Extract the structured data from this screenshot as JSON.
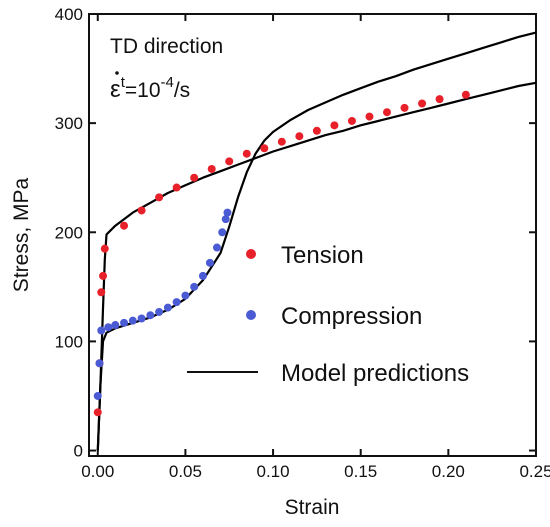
{
  "chart_data": {
    "type": "scatter",
    "xlabel": "Strain",
    "ylabel": "Stress, MPa",
    "xlim": [
      -0.005,
      0.25
    ],
    "ylim": [
      -5,
      400
    ],
    "xticks": [
      0.0,
      0.05,
      0.1,
      0.15,
      0.2,
      0.25
    ],
    "xtick_labels": [
      "0.00",
      "0.05",
      "0.10",
      "0.15",
      "0.20",
      "0.25"
    ],
    "yticks": [
      0,
      100,
      200,
      300,
      400
    ],
    "ytick_labels": [
      "0",
      "100",
      "200",
      "300",
      "400"
    ],
    "grid": false,
    "legend_position": "right-middle",
    "annotation": {
      "line1": "TD direction",
      "rate_symbol": "ε",
      "rate_superscript": "t",
      "rate_equals": "=10",
      "rate_exponent": "-4",
      "rate_unit": "/s"
    },
    "series": [
      {
        "name": "Tension",
        "kind": "points",
        "color": "#e8202a",
        "points": [
          [
            0.0,
            35
          ],
          [
            0.001,
            80
          ],
          [
            0.002,
            145
          ],
          [
            0.003,
            160
          ],
          [
            0.004,
            185
          ],
          [
            0.015,
            206
          ],
          [
            0.025,
            220
          ],
          [
            0.035,
            232
          ],
          [
            0.045,
            241
          ],
          [
            0.055,
            250
          ],
          [
            0.065,
            258
          ],
          [
            0.075,
            265
          ],
          [
            0.085,
            272
          ],
          [
            0.095,
            277
          ],
          [
            0.105,
            283
          ],
          [
            0.115,
            288
          ],
          [
            0.125,
            293
          ],
          [
            0.135,
            298
          ],
          [
            0.145,
            302
          ],
          [
            0.155,
            306
          ],
          [
            0.165,
            310
          ],
          [
            0.175,
            314
          ],
          [
            0.185,
            318
          ],
          [
            0.195,
            322
          ],
          [
            0.21,
            326
          ]
        ]
      },
      {
        "name": "Compression",
        "kind": "points",
        "color": "#4a5bd4",
        "points": [
          [
            0.0,
            50
          ],
          [
            0.001,
            80
          ],
          [
            0.002,
            110
          ],
          [
            0.006,
            113
          ],
          [
            0.01,
            115
          ],
          [
            0.015,
            117
          ],
          [
            0.02,
            119
          ],
          [
            0.025,
            121
          ],
          [
            0.03,
            124
          ],
          [
            0.035,
            127
          ],
          [
            0.04,
            131
          ],
          [
            0.045,
            136
          ],
          [
            0.05,
            142
          ],
          [
            0.055,
            150
          ],
          [
            0.06,
            160
          ],
          [
            0.064,
            172
          ],
          [
            0.068,
            186
          ],
          [
            0.071,
            200
          ],
          [
            0.073,
            212
          ],
          [
            0.074,
            218
          ]
        ]
      },
      {
        "name": "Model predictions",
        "kind": "line",
        "color": "#000000",
        "curves": [
          [
            [
              0.0,
              0
            ],
            [
              0.0015,
              60
            ],
            [
              0.003,
              130
            ],
            [
              0.004,
              175
            ],
            [
              0.005,
              198
            ],
            [
              0.01,
              206
            ],
            [
              0.02,
              218
            ],
            [
              0.03,
              227
            ],
            [
              0.04,
              236
            ],
            [
              0.05,
              243
            ],
            [
              0.06,
              250
            ],
            [
              0.07,
              256
            ],
            [
              0.08,
              262
            ],
            [
              0.09,
              268
            ],
            [
              0.1,
              274
            ],
            [
              0.11,
              279
            ],
            [
              0.12,
              284
            ],
            [
              0.13,
              289
            ],
            [
              0.14,
              293
            ],
            [
              0.15,
              298
            ],
            [
              0.16,
              302
            ],
            [
              0.17,
              306
            ],
            [
              0.18,
              310
            ],
            [
              0.19,
              314
            ],
            [
              0.2,
              318
            ],
            [
              0.21,
              322
            ],
            [
              0.22,
              326
            ],
            [
              0.23,
              330
            ],
            [
              0.24,
              334
            ],
            [
              0.25,
              337
            ]
          ],
          [
            [
              0.0,
              0
            ],
            [
              0.0015,
              60
            ],
            [
              0.003,
              100
            ],
            [
              0.005,
              108
            ],
            [
              0.01,
              112
            ],
            [
              0.02,
              117
            ],
            [
              0.03,
              122
            ],
            [
              0.04,
              129
            ],
            [
              0.05,
              139
            ],
            [
              0.06,
              156
            ],
            [
              0.07,
              181
            ],
            [
              0.075,
              205
            ],
            [
              0.08,
              232
            ],
            [
              0.085,
              255
            ],
            [
              0.09,
              272
            ],
            [
              0.095,
              284
            ],
            [
              0.1,
              292
            ],
            [
              0.11,
              303
            ],
            [
              0.12,
              312
            ],
            [
              0.13,
              319
            ],
            [
              0.14,
              326
            ],
            [
              0.15,
              332
            ],
            [
              0.16,
              338
            ],
            [
              0.17,
              343
            ],
            [
              0.18,
              349
            ],
            [
              0.19,
              354
            ],
            [
              0.2,
              359
            ],
            [
              0.21,
              364
            ],
            [
              0.22,
              369
            ],
            [
              0.23,
              374
            ],
            [
              0.24,
              379
            ],
            [
              0.25,
              383
            ]
          ]
        ]
      }
    ]
  }
}
